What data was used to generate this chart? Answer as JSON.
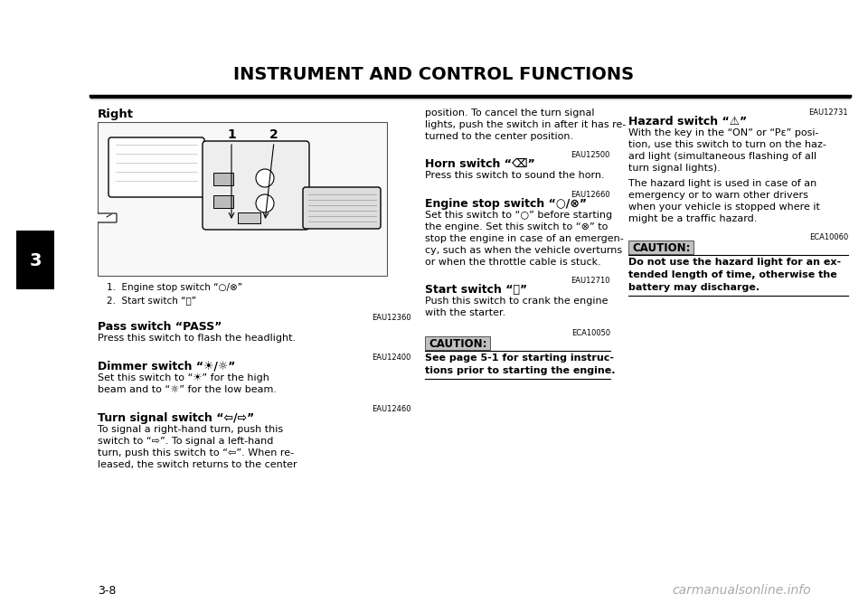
{
  "page_bg": "#ffffff",
  "title": "INSTRUMENT AND CONTROL FUNCTIONS",
  "page_number": "3-8",
  "tab_number": "3",
  "sections": {
    "right_header": "Right",
    "caption1": "1.  Engine stop switch “○/⊗”",
    "caption2": "2.  Start switch “ⓐ”",
    "pass_ref": "EAU12360",
    "pass_title": "Pass switch “PASS”",
    "pass_body": "Press this switch to flash the headlight.",
    "dimmer_ref": "EAU12400",
    "dimmer_title": "Dimmer switch “☀/☼”",
    "dimmer_body1": "Set this switch to “☀” for the high",
    "dimmer_body2": "beam and to “☼” for the low beam.",
    "turn_ref": "EAU12460",
    "turn_title": "Turn signal switch “⇦/⇨”",
    "turn_body": [
      "To signal a right-hand turn, push this",
      "switch to “⇨”. To signal a left-hand",
      "turn, push this switch to “⇦”. When re-",
      "leased, the switch returns to the center"
    ],
    "turn_cont": [
      "position. To cancel the turn signal",
      "lights, push the switch in after it has re-",
      "turned to the center position."
    ],
    "horn_ref": "EAU12500",
    "horn_title": "Horn switch “⌫”",
    "horn_body": "Press this switch to sound the horn.",
    "engine_ref": "EAU12660",
    "engine_title": "Engine stop switch “○/⊗”",
    "engine_body": [
      "Set this switch to “○” before starting",
      "the engine. Set this switch to “⊗” to",
      "stop the engine in case of an emergen-",
      "cy, such as when the vehicle overturns",
      "or when the throttle cable is stuck."
    ],
    "start_ref": "EAU12710",
    "start_title": "Start switch “ⓐ”",
    "start_body": [
      "Push this switch to crank the engine",
      "with the starter."
    ],
    "caution1_ref": "ECA10050",
    "caution1_label": "CAUTION:",
    "caution1_body": [
      "See page 5-1 for starting instruc-",
      "tions prior to starting the engine."
    ],
    "hazard_ref": "EAU12731",
    "hazard_title": "Hazard switch “⚠”",
    "hazard_body": [
      "With the key in the “ON” or “Pε” posi-",
      "tion, use this switch to turn on the haz-",
      "ard light (simultaneous flashing of all",
      "turn signal lights)."
    ],
    "hazard_body2": [
      "The hazard light is used in case of an",
      "emergency or to warn other drivers",
      "when your vehicle is stopped where it",
      "might be a traffic hazard."
    ],
    "caution2_ref": "ECA10060",
    "caution2_label": "CAUTION:",
    "caution2_body": [
      "Do not use the hazard light for an ex-",
      "tended length of time, otherwise the",
      "battery may discharge."
    ],
    "watermark": "carmanualsonline.info"
  }
}
